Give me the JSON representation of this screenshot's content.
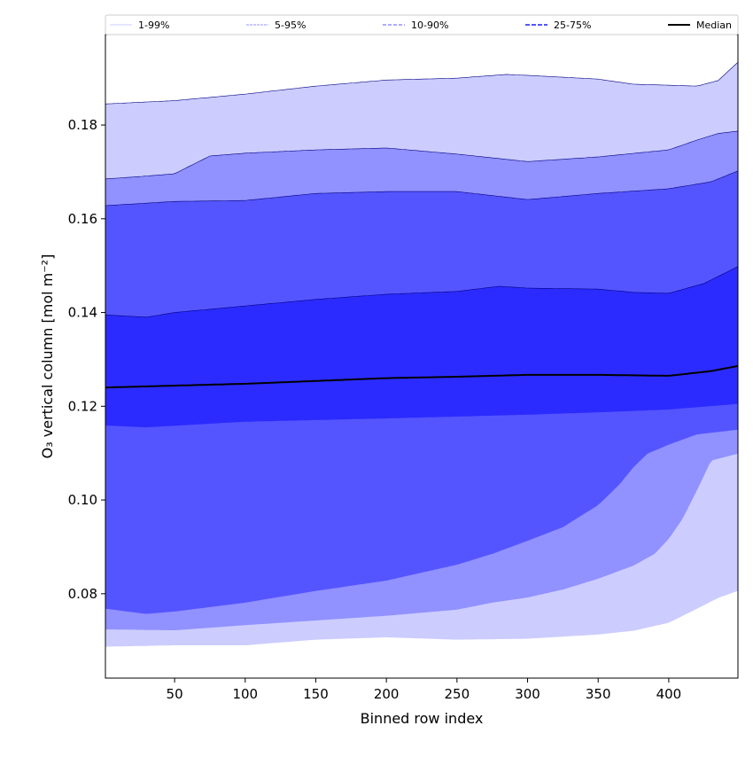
{
  "chart_data": {
    "type": "area",
    "title": "",
    "xlabel": "Binned row index",
    "ylabel": "O₃ vertical column [mol m⁻²]",
    "xlim": [
      1,
      449
    ],
    "ylim": [
      0.062,
      0.1993
    ],
    "xticks": [
      50,
      100,
      150,
      200,
      250,
      300,
      350,
      400
    ],
    "yticks": [
      0.08,
      0.1,
      0.12,
      0.14,
      0.16,
      0.18
    ],
    "ytick_labels": [
      "0.08",
      "0.10",
      "0.12",
      "0.14",
      "0.16",
      "0.18"
    ],
    "grid": false,
    "legend_position": "top, above plot",
    "legend": [
      "1-99%",
      "5-95%",
      "10-90%",
      "25-75%",
      "Median"
    ],
    "bands": [
      {
        "name": "1-99%",
        "color": "#ccccff",
        "lower": "p1",
        "upper": "p99"
      },
      {
        "name": "5-95%",
        "color": "#9191ff",
        "lower": "p5",
        "upper": "p95"
      },
      {
        "name": "10-90%",
        "color": "#5555ff",
        "lower": "p10",
        "upper": "p90"
      },
      {
        "name": "25-75%",
        "color": "#2b2bff",
        "lower": "p25",
        "upper": "p75"
      }
    ],
    "median_color": "#000000",
    "edge_color": "#000080",
    "series": {
      "p99": [
        [
          1,
          0.1845
        ],
        [
          50,
          0.1852
        ],
        [
          100,
          0.1866
        ],
        [
          150,
          0.1883
        ],
        [
          200,
          0.1896
        ],
        [
          250,
          0.19
        ],
        [
          285,
          0.1908
        ],
        [
          300,
          0.1906
        ],
        [
          350,
          0.1898
        ],
        [
          375,
          0.1887
        ],
        [
          400,
          0.1885
        ],
        [
          420,
          0.1883
        ],
        [
          435,
          0.1895
        ],
        [
          449,
          0.1934
        ]
      ],
      "p95": [
        [
          1,
          0.1685
        ],
        [
          25,
          0.169
        ],
        [
          50,
          0.1696
        ],
        [
          75,
          0.1734
        ],
        [
          100,
          0.174
        ],
        [
          150,
          0.1747
        ],
        [
          200,
          0.1751
        ],
        [
          250,
          0.1738
        ],
        [
          300,
          0.1722
        ],
        [
          350,
          0.1732
        ],
        [
          400,
          0.1747
        ],
        [
          420,
          0.1768
        ],
        [
          435,
          0.1782
        ],
        [
          449,
          0.1787
        ]
      ],
      "p90": [
        [
          1,
          0.1628
        ],
        [
          50,
          0.1637
        ],
        [
          100,
          0.1639
        ],
        [
          150,
          0.1654
        ],
        [
          200,
          0.1658
        ],
        [
          250,
          0.1658
        ],
        [
          300,
          0.1641
        ],
        [
          350,
          0.1654
        ],
        [
          400,
          0.1664
        ],
        [
          430,
          0.1679
        ],
        [
          449,
          0.1702
        ]
      ],
      "p75": [
        [
          1,
          0.1395
        ],
        [
          30,
          0.139
        ],
        [
          50,
          0.14
        ],
        [
          100,
          0.1414
        ],
        [
          150,
          0.1428
        ],
        [
          200,
          0.1439
        ],
        [
          250,
          0.1445
        ],
        [
          280,
          0.1456
        ],
        [
          300,
          0.1452
        ],
        [
          350,
          0.145
        ],
        [
          375,
          0.1443
        ],
        [
          400,
          0.1441
        ],
        [
          425,
          0.1462
        ],
        [
          449,
          0.1498
        ]
      ],
      "median": [
        [
          1,
          0.124
        ],
        [
          50,
          0.1244
        ],
        [
          100,
          0.1248
        ],
        [
          150,
          0.1254
        ],
        [
          200,
          0.126
        ],
        [
          250,
          0.1263
        ],
        [
          300,
          0.1267
        ],
        [
          350,
          0.1267
        ],
        [
          400,
          0.1265
        ],
        [
          430,
          0.1275
        ],
        [
          449,
          0.1286
        ]
      ],
      "p25": [
        [
          1,
          0.1159
        ],
        [
          30,
          0.1155
        ],
        [
          100,
          0.1167
        ],
        [
          200,
          0.1174
        ],
        [
          300,
          0.1182
        ],
        [
          350,
          0.1187
        ],
        [
          400,
          0.1193
        ],
        [
          449,
          0.1205
        ]
      ],
      "p10": [
        [
          1,
          0.0768
        ],
        [
          30,
          0.0757
        ],
        [
          50,
          0.0762
        ],
        [
          100,
          0.0781
        ],
        [
          150,
          0.0806
        ],
        [
          200,
          0.0828
        ],
        [
          250,
          0.0862
        ],
        [
          275,
          0.0885
        ],
        [
          300,
          0.0913
        ],
        [
          325,
          0.0942
        ],
        [
          350,
          0.0989
        ],
        [
          365,
          0.1033
        ],
        [
          375,
          0.107
        ],
        [
          385,
          0.1099
        ],
        [
          400,
          0.1118
        ],
        [
          420,
          0.114
        ],
        [
          449,
          0.115
        ]
      ],
      "p5": [
        [
          1,
          0.0724
        ],
        [
          50,
          0.0722
        ],
        [
          100,
          0.0733
        ],
        [
          150,
          0.0743
        ],
        [
          200,
          0.0753
        ],
        [
          250,
          0.0766
        ],
        [
          275,
          0.0781
        ],
        [
          300,
          0.0792
        ],
        [
          325,
          0.0809
        ],
        [
          350,
          0.0832
        ],
        [
          375,
          0.086
        ],
        [
          390,
          0.0885
        ],
        [
          400,
          0.0917
        ],
        [
          410,
          0.0961
        ],
        [
          420,
          0.1021
        ],
        [
          430,
          0.1084
        ],
        [
          449,
          0.1099
        ]
      ],
      "p1": [
        [
          1,
          0.0687
        ],
        [
          50,
          0.069
        ],
        [
          100,
          0.069
        ],
        [
          150,
          0.0702
        ],
        [
          200,
          0.0707
        ],
        [
          250,
          0.0702
        ],
        [
          300,
          0.0704
        ],
        [
          350,
          0.0713
        ],
        [
          375,
          0.0721
        ],
        [
          400,
          0.0738
        ],
        [
          420,
          0.0768
        ],
        [
          435,
          0.0791
        ],
        [
          449,
          0.0806
        ]
      ]
    }
  }
}
